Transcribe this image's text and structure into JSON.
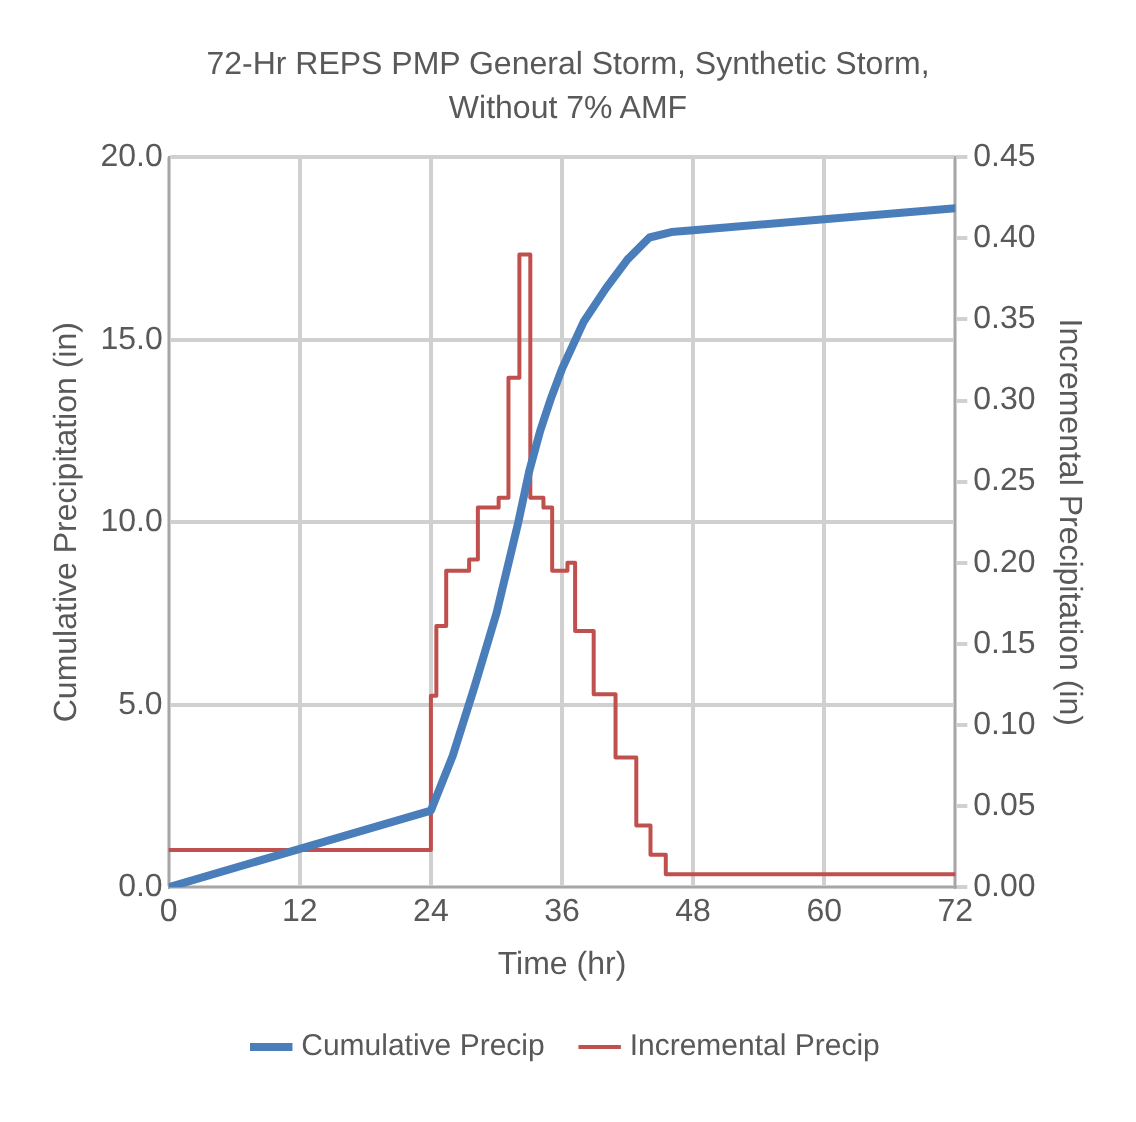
{
  "chart_data": {
    "type": "line",
    "title": "72-Hr REPS PMP General Storm, Synthetic Storm, Without 7% AMF",
    "xlabel": "Time (hr)",
    "ylabel": "Cumulative Precipitation (in)",
    "y2label": "Incremental Precipitation (in)",
    "xlim": [
      0,
      72
    ],
    "xticks": [
      0,
      12,
      24,
      36,
      48,
      60,
      72
    ],
    "ylim": [
      0,
      20
    ],
    "yticks": [
      {
        "value": 0,
        "label": "0.0"
      },
      {
        "value": 5,
        "label": "5.0"
      },
      {
        "value": 10,
        "label": "10.0"
      },
      {
        "value": 15,
        "label": "15.0"
      },
      {
        "value": 20,
        "label": "20.0"
      }
    ],
    "y2lim": [
      0,
      0.45
    ],
    "y2ticks": [
      {
        "value": 0,
        "label": "0.00"
      },
      {
        "value": 0.05,
        "label": "0.05"
      },
      {
        "value": 0.1,
        "label": "0.10"
      },
      {
        "value": 0.15,
        "label": "0.15"
      },
      {
        "value": 0.2,
        "label": "0.20"
      },
      {
        "value": 0.25,
        "label": "0.25"
      },
      {
        "value": 0.3,
        "label": "0.30"
      },
      {
        "value": 0.35,
        "label": "0.35"
      },
      {
        "value": 0.4,
        "label": "0.40"
      },
      {
        "value": 0.45,
        "label": "0.45"
      }
    ],
    "grid": true,
    "legend": "bottom",
    "marker": "none",
    "line_style": "solid",
    "series": [
      {
        "name": "Cumulative Precip",
        "color": "#4a7ebb",
        "x": [
          0,
          12,
          24,
          26,
          28,
          30,
          32,
          33,
          34,
          35,
          36,
          38,
          40,
          42,
          44,
          46,
          48,
          60,
          72
        ],
        "values": [
          0,
          1.05,
          2.1,
          3.6,
          5.5,
          7.5,
          10,
          11.4,
          12.5,
          13.4,
          14.2,
          15.5,
          16.4,
          17.2,
          17.8,
          17.95,
          18,
          18.3,
          18.6
        ]
      },
      {
        "name": "Incremental Precip",
        "color": "#c0504d",
        "type": "step",
        "axis": "y2",
        "x": [
          0,
          24,
          24.5,
          25.4,
          27.5,
          28.3,
          30.2,
          31.1,
          32.1,
          33.1,
          34.3,
          35.1,
          36.5,
          37.2,
          38.9,
          40.9,
          42.8,
          44.1,
          45.5,
          72
        ],
        "values": [
          0.023,
          0.118,
          0.161,
          0.195,
          0.202,
          0.234,
          0.24,
          0.314,
          0.39,
          0.24,
          0.234,
          0.195,
          0.2,
          0.158,
          0.119,
          0.08,
          0.038,
          0.02,
          0.008,
          0.008
        ]
      }
    ]
  }
}
